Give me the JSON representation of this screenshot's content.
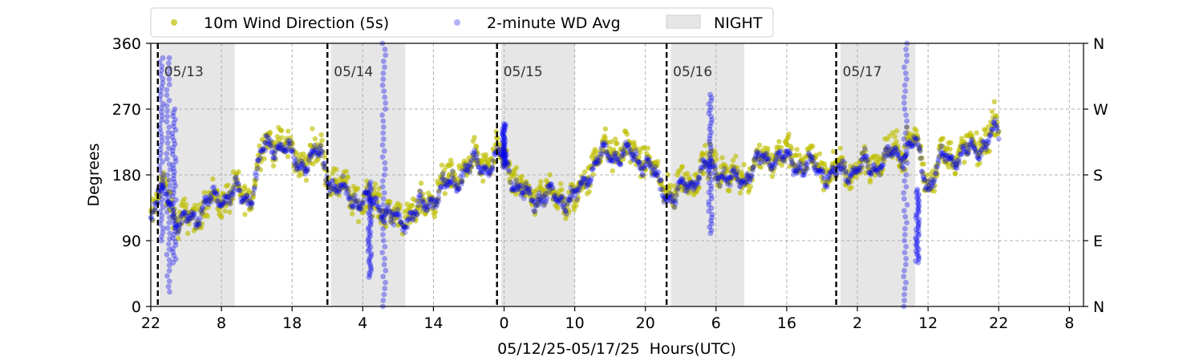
{
  "chart_data": {
    "type": "scatter",
    "title": "",
    "xlabel": "05/12/25-05/17/25  Hours(UTC)",
    "ylabel": "Degrees",
    "xlim": [
      22,
      154
    ],
    "ylim": [
      0,
      360
    ],
    "x_ticks": [
      {
        "x": 22,
        "label": "22"
      },
      {
        "x": 32,
        "label": "8"
      },
      {
        "x": 42,
        "label": "18"
      },
      {
        "x": 52,
        "label": "4"
      },
      {
        "x": 62,
        "label": "14"
      },
      {
        "x": 72,
        "label": "0"
      },
      {
        "x": 82,
        "label": "10"
      },
      {
        "x": 92,
        "label": "20"
      },
      {
        "x": 102,
        "label": "6"
      },
      {
        "x": 112,
        "label": "16"
      },
      {
        "x": 122,
        "label": "2"
      },
      {
        "x": 132,
        "label": "12"
      },
      {
        "x": 142,
        "label": "22"
      },
      {
        "x": 152,
        "label": "8"
      }
    ],
    "y_ticks": [
      0,
      90,
      180,
      270,
      360
    ],
    "y2_ticks": [
      {
        "value": 0,
        "label": "N"
      },
      {
        "value": 90,
        "label": "E"
      },
      {
        "value": 180,
        "label": "S"
      },
      {
        "value": 270,
        "label": "W"
      },
      {
        "value": 360,
        "label": "N"
      }
    ],
    "grid": true,
    "legend_position": "top",
    "legend": [
      {
        "label": "10m Wind Direction (5s)",
        "marker": "dot",
        "color": "#bfbf00"
      },
      {
        "label": "2-minute WD Avg",
        "marker": "dot",
        "color": "#0000ee"
      },
      {
        "label": "NIGHT",
        "marker": "patch",
        "color": "#e6e6e6"
      }
    ],
    "night_spans": [
      [
        23.2,
        33.9
      ],
      [
        47.5,
        58.0
      ],
      [
        71.6,
        82.0
      ],
      [
        95.6,
        106.0
      ],
      [
        119.6,
        130.2
      ]
    ],
    "midnight_lines": [
      {
        "x": 23.0,
        "label": "05/13"
      },
      {
        "x": 47.0,
        "label": "05/14"
      },
      {
        "x": 71.0,
        "label": "05/15"
      },
      {
        "x": 95.0,
        "label": "05/16"
      },
      {
        "x": 119.0,
        "label": "05/17"
      }
    ],
    "series": [
      {
        "name": "10m Wind Direction (5s)",
        "color": "#bfbf00",
        "x": [
          22,
          24,
          26,
          28,
          30,
          32,
          34,
          36,
          38,
          40,
          42,
          44,
          46,
          48,
          50,
          52,
          54,
          56,
          58,
          60,
          62,
          64,
          66,
          68,
          70,
          72,
          74,
          76,
          78,
          80,
          82,
          84,
          86,
          88,
          90,
          92,
          94,
          96,
          98,
          100,
          102,
          104,
          106,
          108,
          110,
          112,
          114,
          116,
          118,
          120,
          122,
          124,
          126,
          128,
          130,
          132,
          134,
          136,
          138,
          140,
          142
        ],
        "y": [
          120,
          170,
          110,
          125,
          140,
          150,
          155,
          150,
          220,
          230,
          205,
          200,
          215,
          165,
          160,
          140,
          150,
          120,
          125,
          130,
          155,
          170,
          185,
          200,
          195,
          210,
          160,
          150,
          155,
          150,
          140,
          190,
          210,
          215,
          210,
          205,
          170,
          155,
          170,
          190,
          195,
          175,
          180,
          200,
          210,
          205,
          200,
          195,
          185,
          185,
          190,
          195,
          205,
          215,
          230,
          170,
          205,
          210,
          215,
          230,
          245
        ],
        "spread": 30
      },
      {
        "name": "2-minute WD Avg",
        "color": "#0000ee",
        "x": [
          22,
          24,
          26,
          28,
          30,
          32,
          34,
          36,
          38,
          40,
          42,
          44,
          46,
          48,
          50,
          52,
          54,
          56,
          58,
          60,
          62,
          64,
          66,
          68,
          70,
          72,
          74,
          76,
          78,
          80,
          82,
          84,
          86,
          88,
          90,
          92,
          94,
          96,
          98,
          100,
          102,
          104,
          106,
          108,
          110,
          112,
          114,
          116,
          118,
          120,
          122,
          124,
          126,
          128,
          130,
          132,
          134,
          136,
          138,
          140,
          142
        ],
        "y": [
          120,
          165,
          105,
          125,
          140,
          150,
          155,
          150,
          215,
          225,
          205,
          195,
          210,
          160,
          155,
          140,
          145,
          115,
          120,
          130,
          150,
          165,
          180,
          195,
          190,
          210,
          155,
          150,
          150,
          150,
          145,
          185,
          205,
          210,
          205,
          200,
          165,
          150,
          165,
          185,
          190,
          170,
          178,
          195,
          205,
          200,
          195,
          190,
          180,
          183,
          188,
          192,
          200,
          210,
          225,
          165,
          200,
          205,
          210,
          225,
          240
        ],
        "spread": 12
      }
    ],
    "excursions": [
      {
        "x": 23.5,
        "y_from": 90,
        "y_to": 340,
        "series": "2-minute WD Avg"
      },
      {
        "x": 24.5,
        "y_from": 20,
        "y_to": 340,
        "series": "2-minute WD Avg"
      },
      {
        "x": 25.3,
        "y_from": 60,
        "y_to": 270,
        "series": "2-minute WD Avg"
      },
      {
        "x": 55.0,
        "y_from": 0,
        "y_to": 360,
        "series": "2-minute WD Avg"
      },
      {
        "x": 53.0,
        "y_from": 40,
        "y_to": 170,
        "series": "2-minute WD Avg"
      },
      {
        "x": 72.0,
        "y_from": 190,
        "y_to": 250,
        "series": "2-minute WD Avg"
      },
      {
        "x": 101.2,
        "y_from": 100,
        "y_to": 290,
        "series": "2-minute WD Avg"
      },
      {
        "x": 128.8,
        "y_from": 0,
        "y_to": 360,
        "series": "2-minute WD Avg"
      },
      {
        "x": 130.5,
        "y_from": 60,
        "y_to": 160,
        "series": "2-minute WD Avg"
      }
    ]
  }
}
